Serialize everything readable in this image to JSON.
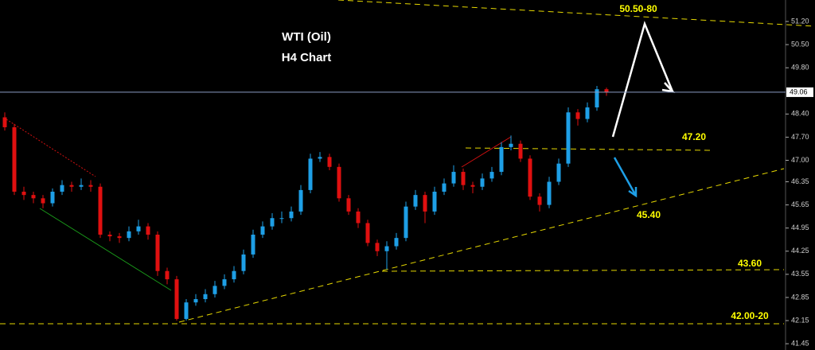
{
  "chart_data": {
    "type": "candlestick",
    "title": "WTI (Oil)",
    "subtitle": "H4 Chart",
    "annotations": [
      "50.50-80",
      "47.20",
      "45.40",
      "43.60",
      "42.00-20"
    ],
    "up_color": "#1e9fe6",
    "down_color": "#e01010",
    "last_price": 49.06,
    "ylim": [
      41.26,
      51.85
    ],
    "yticks": [
      {
        "value": 51.2,
        "label": "51.20"
      },
      {
        "value": 50.5,
        "label": "50.50"
      },
      {
        "value": 49.8,
        "label": "49.80"
      },
      {
        "value": 48.4,
        "label": "48.40"
      },
      {
        "value": 47.7,
        "label": "47.70"
      },
      {
        "value": 47.0,
        "label": "47.00"
      },
      {
        "value": 46.35,
        "label": "46.35"
      },
      {
        "value": 45.65,
        "label": "45.65"
      },
      {
        "value": 44.95,
        "label": "44.95"
      },
      {
        "value": 44.25,
        "label": "44.25"
      },
      {
        "value": 43.55,
        "label": "43.55"
      },
      {
        "value": 42.85,
        "label": "42.85"
      },
      {
        "value": 42.15,
        "label": "42.15"
      },
      {
        "value": 41.45,
        "label": "41.45"
      }
    ],
    "open": [
      48.3,
      48.0,
      46.05,
      45.95,
      45.85,
      45.7,
      46.05,
      46.25,
      46.2,
      46.25,
      46.2,
      44.75,
      44.7,
      44.65,
      44.85,
      45.0,
      44.75,
      43.65,
      43.4,
      42.2,
      42.7,
      42.8,
      42.95,
      43.2,
      43.4,
      43.65,
      44.15,
      44.75,
      45.0,
      45.25,
      45.25,
      45.45,
      46.1,
      47.05,
      47.1,
      46.8,
      45.85,
      45.45,
      45.1,
      44.5,
      44.25,
      44.4,
      44.65,
      45.6,
      45.95,
      45.45,
      46.05,
      46.3,
      46.65,
      46.25,
      46.2,
      46.45,
      46.65,
      47.4,
      47.5,
      47.05,
      45.9,
      45.65,
      46.35,
      46.9,
      48.45,
      48.25,
      48.6,
      49.15
    ],
    "high": [
      48.45,
      48.1,
      46.2,
      46.05,
      45.95,
      46.15,
      46.4,
      46.35,
      46.45,
      46.4,
      46.3,
      44.85,
      44.8,
      45.0,
      45.2,
      45.1,
      44.85,
      43.75,
      43.5,
      42.8,
      42.95,
      43.1,
      43.35,
      43.55,
      43.8,
      44.3,
      44.9,
      45.15,
      45.4,
      45.45,
      45.6,
      46.25,
      47.2,
      47.25,
      47.2,
      46.9,
      45.95,
      45.55,
      45.2,
      44.6,
      44.55,
      44.8,
      45.75,
      46.1,
      46.05,
      46.2,
      46.45,
      46.85,
      46.75,
      46.35,
      46.6,
      46.8,
      47.55,
      47.75,
      47.6,
      47.15,
      46.0,
      46.5,
      47.05,
      48.6,
      48.55,
      48.75,
      49.25,
      49.2
    ],
    "low": [
      47.9,
      45.95,
      45.8,
      45.7,
      45.55,
      45.6,
      45.95,
      46.05,
      46.1,
      46.05,
      44.65,
      44.55,
      44.5,
      44.55,
      44.75,
      44.6,
      43.5,
      43.25,
      42.15,
      42.15,
      42.6,
      42.7,
      42.85,
      43.1,
      43.3,
      43.55,
      44.05,
      44.65,
      44.9,
      45.1,
      45.15,
      45.35,
      46.0,
      46.95,
      46.7,
      45.75,
      45.35,
      44.95,
      44.4,
      44.1,
      43.7,
      44.3,
      44.55,
      45.5,
      45.1,
      45.35,
      45.95,
      46.2,
      46.1,
      46.0,
      46.1,
      46.35,
      46.55,
      47.3,
      46.95,
      45.8,
      45.45,
      45.55,
      46.25,
      46.8,
      48.05,
      48.15,
      48.5,
      48.95
    ],
    "close": [
      48.0,
      46.05,
      45.95,
      45.85,
      45.7,
      46.05,
      46.25,
      46.2,
      46.25,
      46.2,
      44.75,
      44.7,
      44.65,
      44.85,
      45.0,
      44.75,
      43.65,
      43.4,
      42.2,
      42.7,
      42.8,
      42.95,
      43.2,
      43.4,
      43.65,
      44.15,
      44.75,
      45.0,
      45.25,
      45.25,
      45.45,
      46.1,
      47.05,
      47.1,
      46.8,
      45.85,
      45.45,
      45.1,
      44.5,
      44.25,
      44.4,
      44.65,
      45.6,
      45.95,
      45.45,
      46.05,
      46.3,
      46.65,
      46.25,
      46.2,
      46.45,
      46.65,
      47.4,
      47.5,
      47.05,
      45.9,
      45.65,
      46.35,
      46.9,
      48.45,
      48.25,
      48.6,
      49.15,
      49.06
    ]
  }
}
